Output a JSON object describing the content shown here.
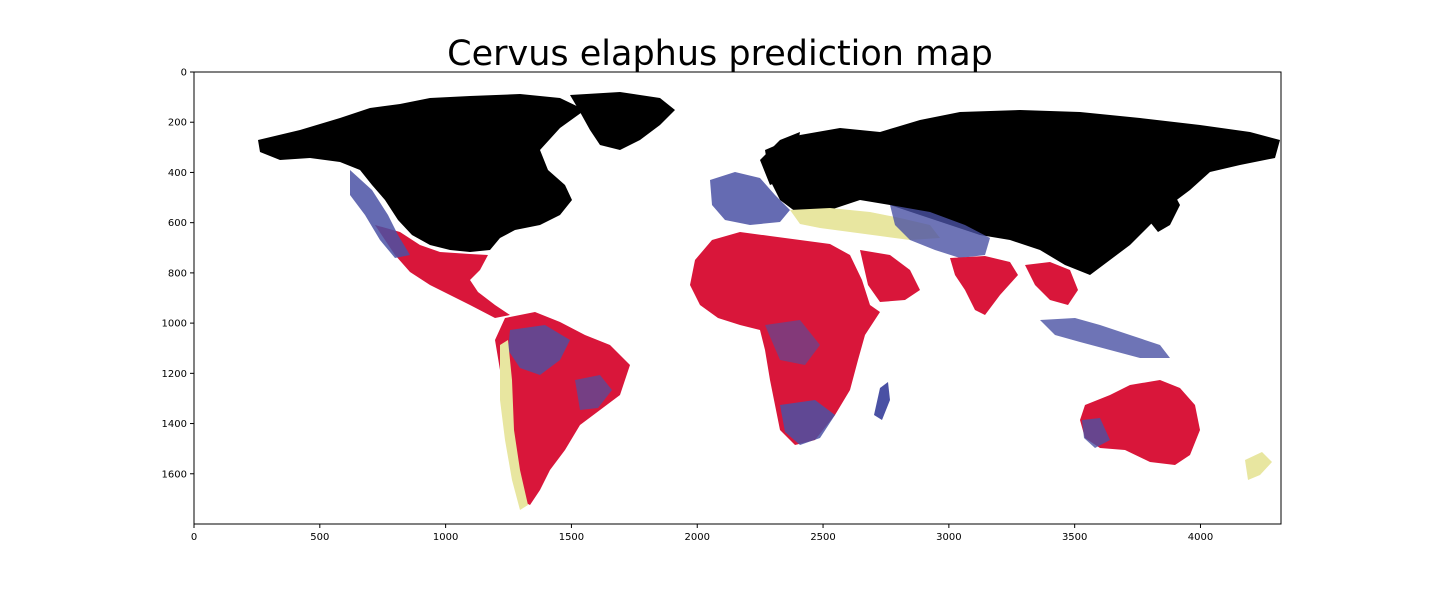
{
  "title": "Cervus elaphus prediction map",
  "chart_data": {
    "type": "heatmap",
    "title": "Cervus elaphus prediction map",
    "xlabel": "",
    "ylabel": "",
    "xlim": [
      0,
      4320
    ],
    "ylim": [
      1800,
      0
    ],
    "x_ticks": [
      0,
      500,
      1000,
      1500,
      2000,
      2500,
      3000,
      3500,
      4000
    ],
    "y_ticks": [
      0,
      200,
      400,
      600,
      800,
      1000,
      1200,
      1400,
      1600
    ],
    "grid": false,
    "colors": {
      "background": "#ffffff",
      "high_suitability": "#000000",
      "mid_suitability": "#d9163a",
      "low_suitability": "#4a51a4",
      "very_low_suitability": "#e8e6a0"
    }
  }
}
